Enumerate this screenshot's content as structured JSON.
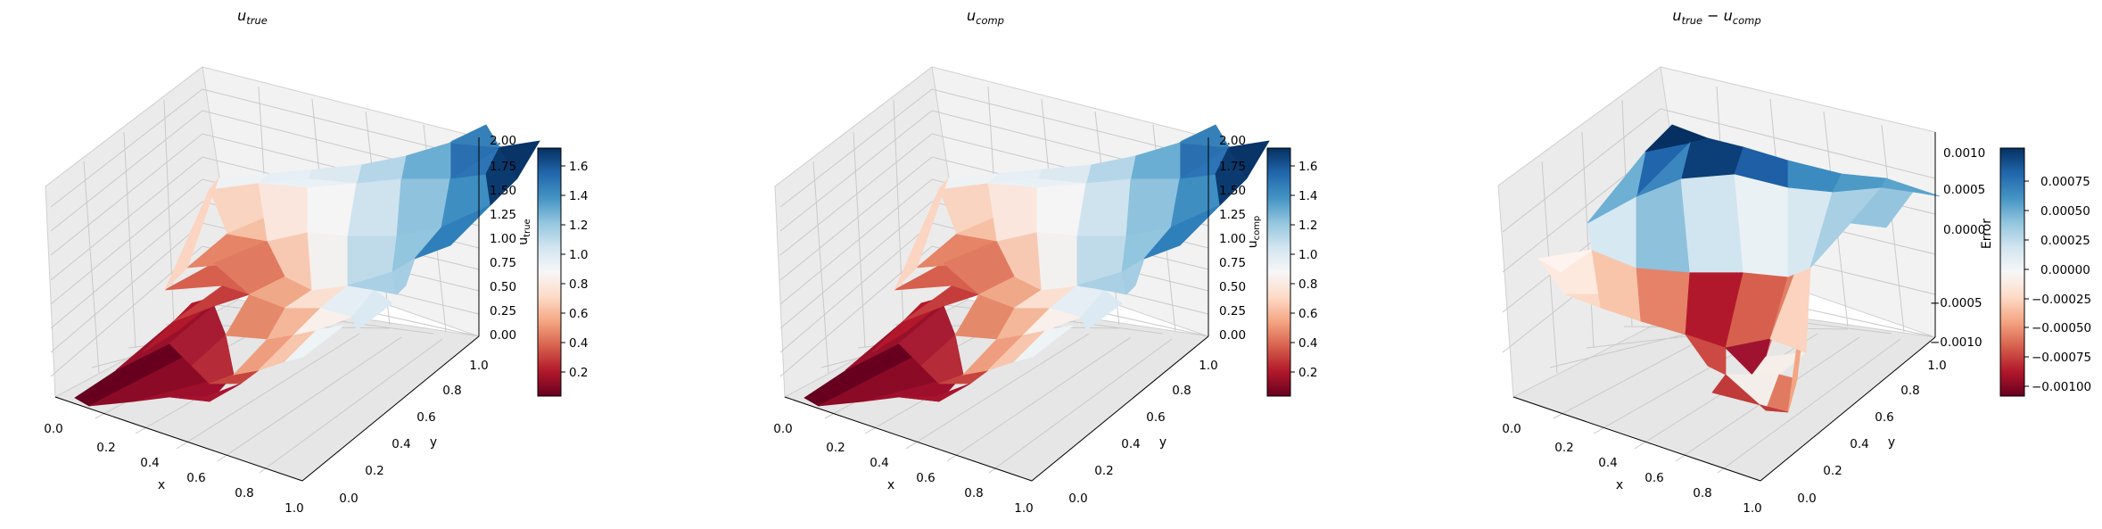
{
  "chart_data": [
    {
      "type": "surface3d",
      "title": "u",
      "title_subscript": "true",
      "xlabel": "x",
      "ylabel": "y",
      "zlabel": "u",
      "zlabel_subscript": "true",
      "x_ticks": [
        "0.0",
        "0.2",
        "0.4",
        "0.6",
        "0.8",
        "1.0"
      ],
      "y_ticks": [
        "0.0",
        "0.2",
        "0.4",
        "0.6",
        "0.8",
        "1.0"
      ],
      "z_ticks": [
        "0.00",
        "0.25",
        "0.50",
        "0.75",
        "1.00",
        "1.25",
        "1.50",
        "1.75",
        "2.00"
      ],
      "xlim": [
        0,
        1
      ],
      "ylim": [
        0,
        1
      ],
      "zlim": [
        0,
        2
      ],
      "colormap": "RdBu",
      "colorbar": {
        "ticks": [
          "0.2",
          "0.4",
          "0.6",
          "0.8",
          "1.0",
          "1.2",
          "1.4",
          "1.6"
        ],
        "range": [
          0.02,
          1.72
        ]
      },
      "grid": true
    },
    {
      "type": "surface3d",
      "title": "u",
      "title_subscript": "comp",
      "xlabel": "x",
      "ylabel": "y",
      "zlabel": "u",
      "zlabel_subscript": "comp",
      "x_ticks": [
        "0.0",
        "0.2",
        "0.4",
        "0.6",
        "0.8",
        "1.0"
      ],
      "y_ticks": [
        "0.0",
        "0.2",
        "0.4",
        "0.6",
        "0.8",
        "1.0"
      ],
      "z_ticks": [
        "0.00",
        "0.25",
        "0.50",
        "0.75",
        "1.00",
        "1.25",
        "1.50",
        "1.75",
        "2.00"
      ],
      "xlim": [
        0,
        1
      ],
      "ylim": [
        0,
        1
      ],
      "zlim": [
        0,
        2
      ],
      "colormap": "RdBu",
      "colorbar": {
        "ticks": [
          "0.2",
          "0.4",
          "0.6",
          "0.8",
          "1.0",
          "1.2",
          "1.4",
          "1.6"
        ],
        "range": [
          0.02,
          1.72
        ]
      },
      "grid": true
    },
    {
      "type": "surface3d",
      "title_parts": [
        {
          "base": "u",
          "sub": "true"
        },
        {
          "op": " − "
        },
        {
          "base": "u",
          "sub": "comp"
        }
      ],
      "xlabel": "x",
      "ylabel": "y",
      "zlabel": "Error",
      "x_ticks": [
        "0.0",
        "0.2",
        "0.4",
        "0.6",
        "0.8",
        "1.0"
      ],
      "y_ticks": [
        "0.0",
        "0.2",
        "0.4",
        "0.6",
        "0.8",
        "1.0"
      ],
      "z_ticks": [
        "−0.0010",
        "−0.0005",
        "0.0000",
        "0.0005",
        "0.0010"
      ],
      "zlim": [
        -0.0013,
        0.0011
      ],
      "colormap": "RdBu",
      "colorbar": {
        "ticks": [
          "−0.00100",
          "−0.00075",
          "−0.00050",
          "−0.00025",
          "0.00000",
          "0.00025",
          "0.00050",
          "0.00075"
        ],
        "range": [
          -0.00115,
          0.00095
        ]
      },
      "grid": true
    }
  ]
}
